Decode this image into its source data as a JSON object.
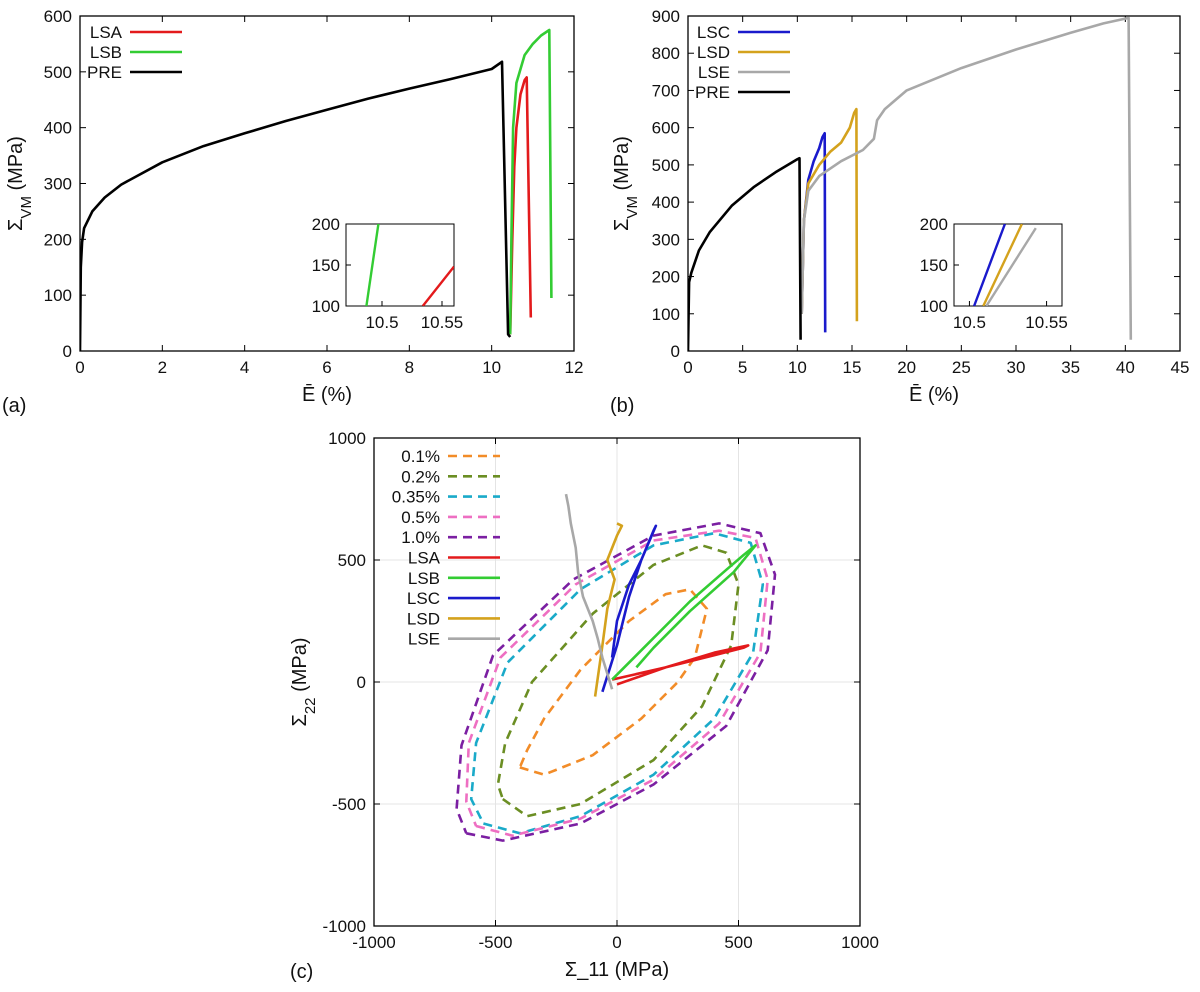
{
  "chart_data": [
    {
      "panel": "(a)",
      "type": "line",
      "xlabel": "Ē (%)",
      "ylabel": "Σ_VM (MPa)",
      "xlim": [
        0,
        12
      ],
      "ylim": [
        0,
        600
      ],
      "xticks": [
        0,
        2,
        4,
        6,
        8,
        10,
        12
      ],
      "yticks": [
        0,
        100,
        200,
        300,
        400,
        500,
        600
      ],
      "legend_position": "top-left",
      "series": [
        {
          "name": "LSA",
          "color": "#e31a1c",
          "x": [
            10.45,
            10.5,
            10.55,
            10.6,
            10.7,
            10.8,
            10.85,
            10.95
          ],
          "y": [
            30,
            200,
            330,
            400,
            460,
            485,
            490,
            60
          ]
        },
        {
          "name": "LSB",
          "color": "#33cc33",
          "x": [
            10.45,
            10.48,
            10.52,
            10.6,
            10.8,
            11.0,
            11.2,
            11.4,
            11.45
          ],
          "y": [
            30,
            200,
            400,
            480,
            530,
            550,
            565,
            575,
            95
          ]
        },
        {
          "name": "PRE",
          "color": "#000000",
          "x": [
            0,
            0.02,
            0.05,
            0.1,
            0.3,
            0.6,
            1,
            2,
            3,
            4,
            5,
            6,
            7,
            8,
            9,
            10,
            10.25,
            10.4,
            10.45
          ],
          "y": [
            0,
            150,
            195,
            220,
            250,
            275,
            298,
            338,
            367,
            390,
            412,
            432,
            452,
            470,
            487,
            505,
            518,
            30,
            25
          ]
        }
      ],
      "inset": {
        "xlim": [
          10.47,
          10.56
        ],
        "ylim": [
          100,
          200
        ],
        "xticks": [
          10.5,
          10.55
        ],
        "xtick_labels": [
          "10.5",
          "10.55"
        ],
        "yticks": [
          100,
          150,
          200
        ],
        "series": [
          {
            "name": "LSA",
            "color": "#e31a1c",
            "x": [
              10.534,
              10.56
            ],
            "y": [
              100,
              148
            ]
          },
          {
            "name": "LSB",
            "color": "#33cc33",
            "x": [
              10.487,
              10.497
            ],
            "y": [
              100,
              200
            ]
          }
        ]
      }
    },
    {
      "panel": "(b)",
      "type": "line",
      "xlabel": "Ē (%)",
      "ylabel": "Σ_VM (MPa)",
      "xlim": [
        0,
        45
      ],
      "ylim": [
        0,
        900
      ],
      "xticks": [
        0,
        5,
        10,
        15,
        20,
        25,
        30,
        35,
        40,
        45
      ],
      "yticks": [
        0,
        100,
        200,
        300,
        400,
        500,
        600,
        700,
        800,
        900
      ],
      "legend_position": "top-left",
      "series": [
        {
          "name": "LSC",
          "color": "#1a1acc",
          "x": [
            10.4,
            10.6,
            11,
            11.5,
            12,
            12.3,
            12.5,
            12.55
          ],
          "y": [
            100,
            350,
            460,
            510,
            545,
            575,
            585,
            50
          ]
        },
        {
          "name": "LSD",
          "color": "#d4a21d",
          "x": [
            10.4,
            10.6,
            11,
            12,
            13,
            14,
            14.8,
            15.2,
            15.4,
            15.45
          ],
          "y": [
            100,
            350,
            450,
            500,
            535,
            560,
            600,
            640,
            650,
            80
          ]
        },
        {
          "name": "LSE",
          "color": "#a8a8a8",
          "x": [
            10.4,
            10.6,
            11,
            12,
            14,
            16,
            17,
            17.3,
            18,
            20,
            25,
            30,
            35,
            38,
            40,
            40.3,
            40.5
          ],
          "y": [
            100,
            350,
            430,
            470,
            510,
            540,
            570,
            620,
            650,
            700,
            760,
            810,
            855,
            880,
            893,
            895,
            30
          ]
        },
        {
          "name": "PRE",
          "color": "#000000",
          "x": [
            0,
            0.1,
            0.3,
            1,
            2,
            4,
            6,
            8,
            10,
            10.2,
            10.3
          ],
          "y": [
            0,
            185,
            210,
            270,
            320,
            390,
            440,
            480,
            515,
            518,
            30
          ]
        }
      ],
      "inset": {
        "xlim": [
          10.49,
          10.56
        ],
        "ylim": [
          100,
          200
        ],
        "xticks": [
          10.5,
          10.55
        ],
        "xtick_labels": [
          "10.5",
          "10.55"
        ],
        "yticks": [
          100,
          150,
          200
        ],
        "series": [
          {
            "name": "LSC",
            "color": "#1a1acc",
            "x": [
              10.503,
              10.523
            ],
            "y": [
              100,
              200
            ]
          },
          {
            "name": "LSD",
            "color": "#d4a21d",
            "x": [
              10.509,
              10.534
            ],
            "y": [
              100,
              200
            ]
          },
          {
            "name": "LSE",
            "color": "#a8a8a8",
            "x": [
              10.511,
              10.543
            ],
            "y": [
              100,
              195
            ]
          }
        ]
      }
    },
    {
      "panel": "(c)",
      "type": "line",
      "xlabel": "Σ_11 (MPa)",
      "ylabel": "Σ_22 (MPa)",
      "xlim": [
        -1000,
        1000
      ],
      "ylim": [
        -1000,
        1000
      ],
      "xticks": [
        -1000,
        -500,
        0,
        500,
        1000
      ],
      "yticks": [
        -1000,
        -500,
        0,
        500,
        1000
      ],
      "grid": true,
      "legend_position": "top-left",
      "series": [
        {
          "name": "0.1%",
          "color": "#f28c28",
          "dashed": true,
          "x": [
            -400,
            -300,
            -100,
            100,
            250,
            320,
            370,
            300,
            200,
            50,
            -150,
            -300,
            -370,
            -400
          ],
          "y": [
            -350,
            -380,
            -300,
            -150,
            0,
            100,
            300,
            380,
            360,
            250,
            50,
            -150,
            -280,
            -350
          ]
        },
        {
          "name": "0.2%",
          "color": "#6b8e23",
          "dashed": true,
          "x": [
            -470,
            -370,
            -150,
            150,
            350,
            470,
            500,
            450,
            350,
            150,
            -100,
            -350,
            -460,
            -490,
            -470
          ],
          "y": [
            -480,
            -550,
            -500,
            -320,
            -100,
            150,
            400,
            530,
            560,
            480,
            280,
            0,
            -250,
            -420,
            -480
          ]
        },
        {
          "name": "0.35%",
          "color": "#1aaac9",
          "dashed": true,
          "x": [
            -550,
            -400,
            -150,
            150,
            400,
            560,
            600,
            550,
            400,
            150,
            -150,
            -450,
            -580,
            -600,
            -550
          ],
          "y": [
            -580,
            -620,
            -550,
            -380,
            -150,
            120,
            400,
            570,
            610,
            560,
            380,
            80,
            -250,
            -480,
            -580
          ]
        },
        {
          "name": "0.5%",
          "color": "#ee6fc2",
          "dashed": true,
          "x": [
            -580,
            -430,
            -150,
            150,
            420,
            590,
            620,
            570,
            420,
            150,
            -170,
            -480,
            -610,
            -620,
            -580
          ],
          "y": [
            -590,
            -630,
            -560,
            -400,
            -170,
            120,
            420,
            590,
            620,
            580,
            400,
            100,
            -250,
            -490,
            -590
          ]
        },
        {
          "name": "1.0%",
          "color": "#7b1fa2",
          "dashed": true,
          "x": [
            -620,
            -470,
            -150,
            150,
            450,
            620,
            650,
            590,
            420,
            150,
            -180,
            -510,
            -640,
            -660,
            -620
          ],
          "y": [
            -620,
            -650,
            -580,
            -420,
            -180,
            130,
            440,
            610,
            650,
            600,
            420,
            110,
            -260,
            -520,
            -620
          ]
        },
        {
          "name": "LSA",
          "color": "#e31a1c",
          "x": [
            -20,
            200,
            400,
            520,
            540,
            400,
            200,
            0
          ],
          "y": [
            10,
            60,
            110,
            140,
            150,
            120,
            60,
            -10
          ]
        },
        {
          "name": "LSB",
          "color": "#33cc33",
          "x": [
            -20,
            150,
            300,
            450,
            520,
            570,
            480,
            300,
            150,
            80
          ],
          "y": [
            10,
            180,
            330,
            460,
            520,
            560,
            450,
            290,
            140,
            60
          ]
        },
        {
          "name": "LSC",
          "color": "#1a1acc",
          "x": [
            -60,
            0,
            50,
            100,
            150,
            160,
            100,
            50,
            0,
            -20
          ],
          "y": [
            -40,
            150,
            350,
            500,
            620,
            640,
            500,
            400,
            250,
            100
          ]
        },
        {
          "name": "LSD",
          "color": "#d4a21d",
          "x": [
            -90,
            -60,
            -40,
            -20,
            -10,
            -40,
            0,
            20,
            0
          ],
          "y": [
            -60,
            150,
            300,
            380,
            420,
            500,
            600,
            640,
            650
          ]
        },
        {
          "name": "LSE",
          "color": "#a8a8a8",
          "x": [
            -20,
            -60,
            -80,
            -100,
            -140,
            -160,
            -170,
            -190,
            -200,
            -210
          ],
          "y": [
            -30,
            100,
            180,
            250,
            350,
            450,
            550,
            650,
            720,
            770
          ]
        }
      ]
    }
  ]
}
